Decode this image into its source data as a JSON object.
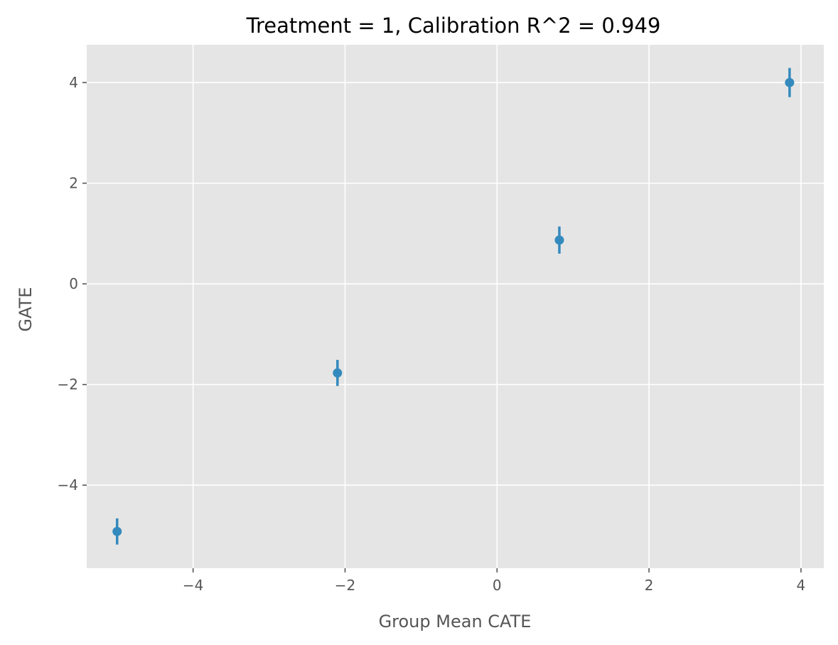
{
  "chart_data": {
    "type": "scatter",
    "title": "Treatment = 1, Calibration R^2 = 0.949",
    "xlabel": "Group Mean CATE",
    "ylabel": "GATE",
    "xlim": [
      -5.4,
      4.3
    ],
    "ylim": [
      -5.65,
      4.75
    ],
    "xticks": [
      -4,
      -2,
      0,
      2,
      4
    ],
    "yticks": [
      -4,
      -2,
      0,
      2,
      4
    ],
    "xtick_labels": [
      "−4",
      "−2",
      "0",
      "2",
      "4"
    ],
    "ytick_labels": [
      "−4",
      "−2",
      "0",
      "2",
      "4"
    ],
    "grid": true,
    "style": "ggplot",
    "colors": {
      "plot_background": "#E5E5E5",
      "grid": "#FFFFFF",
      "marker": "#348ABD",
      "tick_text": "#555555",
      "title_text": "#000000"
    },
    "points": [
      {
        "x": -5.0,
        "y": -4.92,
        "err_low": -5.18,
        "err_high": -4.66
      },
      {
        "x": -2.1,
        "y": -1.77,
        "err_low": -2.03,
        "err_high": -1.51
      },
      {
        "x": 0.82,
        "y": 0.87,
        "err_low": 0.6,
        "err_high": 1.14
      },
      {
        "x": 3.85,
        "y": 4.0,
        "err_low": 3.71,
        "err_high": 4.29
      }
    ]
  }
}
